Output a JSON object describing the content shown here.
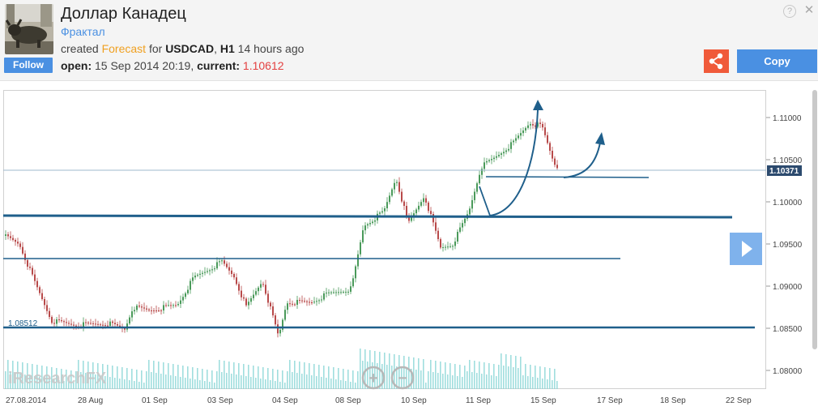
{
  "header": {
    "title": "Доллар Канадец",
    "subtitle": "Фрактал",
    "created_prefix": "created",
    "forecast_label": "Forecast",
    "for_label": "for",
    "symbol": "USDCAD",
    "timeframe": "H1",
    "ago": "14 hours ago",
    "open_label": "open:",
    "open_value": "15 Sep 2014 20:19,",
    "current_label": "current:",
    "current_value": "1.10612",
    "follow_label": "Follow",
    "copy_label": "Copy",
    "help_glyph": "?",
    "close_glyph": "✕"
  },
  "colors": {
    "accent": "#4a90e2",
    "share": "#f05a3a",
    "forecast": "#f0a020",
    "current": "#e34040",
    "line": "#1f5f8b",
    "bull": "#4a9a5a",
    "bear": "#b84a4a",
    "volume": "#8fd8d8"
  },
  "chart": {
    "watermark": "iResearchFX",
    "price_tag": "1.10371",
    "left_level_label": "1.08512",
    "y_ticks": [
      "1.11000",
      "1.10500",
      "1.10000",
      "1.09500",
      "1.09000",
      "1.08500",
      "1.08000"
    ],
    "x_ticks": [
      "27.08.2014",
      "28 Aug",
      "01 Sep",
      "03 Sep",
      "04 Sep",
      "08 Sep",
      "10 Sep",
      "11 Sep",
      "15 Sep",
      "17 Sep",
      "18 Sep",
      "22 Sep"
    ],
    "zoom_in_glyph": "+",
    "zoom_out_glyph": "−"
  }
}
